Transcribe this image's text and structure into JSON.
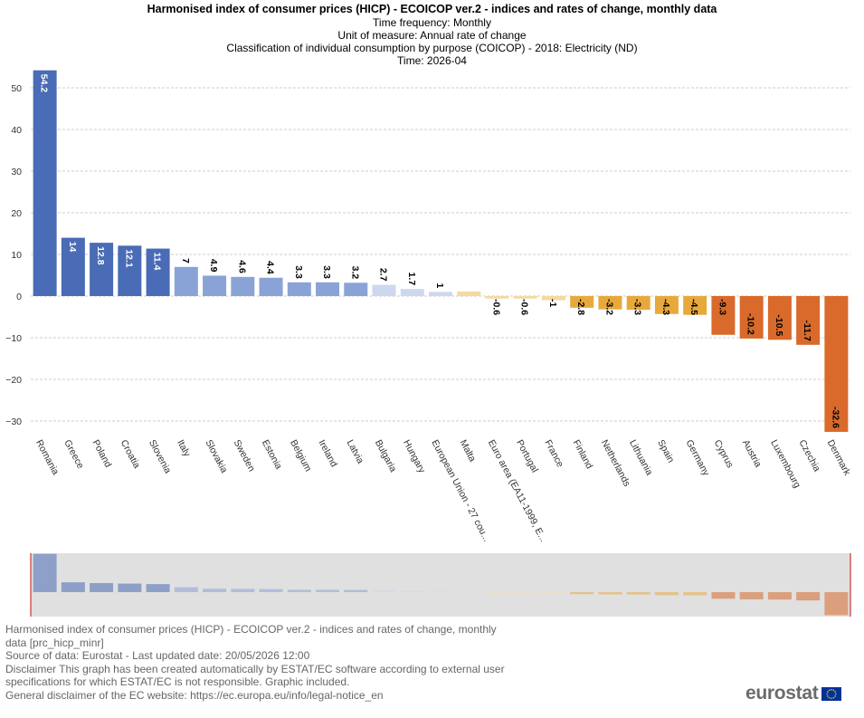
{
  "header": {
    "title": "Harmonised index of consumer prices (HICP) - ECOICOP ver.2 - indices and rates of change, monthly data",
    "line1": "Time frequency:  Monthly",
    "line2": "Unit of measure:  Annual rate of change",
    "line3": "Classification of individual consumption by purpose (COICOP) - 2018:  Electricity (ND)",
    "line4": "Time:  2026-04"
  },
  "footer": {
    "line1": "Harmonised index of consumer prices (HICP) - ECOICOP ver.2 - indices and rates of change, monthly",
    "line2": "data [prc_hicp_minr]",
    "line3": "Source of data: Eurostat - Last updated date: 20/05/2026 12:00",
    "line4": "Disclaimer This graph has been created automatically by ESTAT/EC software according to external user",
    "line5": "specifications for which ESTAT/EC is not responsible. Graphic included.",
    "line6": "General disclaimer of the EC website: https://ec.europa.eu/info/legal-notice_en"
  },
  "logo": {
    "text": "eurostat",
    "icon": "eu-flag-icon"
  },
  "colors": {
    "dark_blue": "#4a6bb5",
    "mid_blue": "#8aa3d6",
    "light_blue": "#cdd8ee",
    "light_yellow": "#f4d9a0",
    "yellow": "#e8a93c",
    "orange": "#d96a2b",
    "grid": "#cccccc",
    "navigator_bg": "#e0e0e0",
    "navigator_edge": "#cc3333"
  },
  "chart_data": {
    "type": "bar",
    "categories": [
      "Romania",
      "Greece",
      "Poland",
      "Croatia",
      "Slovenia",
      "Italy",
      "Slovakia",
      "Sweden",
      "Estonia",
      "Belgium",
      "Ireland",
      "Latvia",
      "Bulgaria",
      "Hungary",
      "European Union - 27 cou...",
      "Malta",
      "Euro area (EA11-1999, E...",
      "Portugal",
      "France",
      "Finland",
      "Netherlands",
      "Lithuania",
      "Spain",
      "Germany",
      "Cyprus",
      "Austria",
      "Luxembourg",
      "Czechia",
      "Denmark"
    ],
    "values": [
      54.2,
      14,
      12.8,
      12.1,
      11.4,
      7,
      4.9,
      4.6,
      4.4,
      3.3,
      3.3,
      3.2,
      2.7,
      1.7,
      1,
      1.1,
      -0.6,
      -0.6,
      -1,
      -2.8,
      -3.2,
      -3.3,
      -4.3,
      -4.5,
      -9.3,
      -10.2,
      -10.5,
      -11.7,
      -32.6
    ],
    "labels": [
      "54.2",
      "14",
      "12.8",
      "12.1",
      "11.4",
      "7",
      "4.9",
      "4.6",
      "4.4",
      "3.3",
      "3.3",
      "3.2",
      "2.7",
      "1.7",
      "1",
      "",
      "-0.6",
      "-0.6",
      "-1",
      "-2.8",
      "-3.2",
      "-3.3",
      "-4.3",
      "-4.5",
      "-9.3",
      "-10.2",
      "-10.5",
      "-11.7",
      "-32.6"
    ],
    "color_groups": [
      "dark_blue",
      "dark_blue",
      "dark_blue",
      "dark_blue",
      "dark_blue",
      "mid_blue",
      "mid_blue",
      "mid_blue",
      "mid_blue",
      "mid_blue",
      "mid_blue",
      "mid_blue",
      "light_blue",
      "light_blue",
      "light_blue",
      "light_yellow",
      "light_yellow",
      "light_yellow",
      "light_yellow",
      "yellow",
      "yellow",
      "yellow",
      "yellow",
      "yellow",
      "orange",
      "orange",
      "orange",
      "orange",
      "orange"
    ],
    "yticks": [
      50,
      40,
      30,
      20,
      10,
      0,
      -10,
      -20,
      -30
    ],
    "ylim": [
      -33,
      54.2
    ],
    "grid": true,
    "legend": "none"
  }
}
